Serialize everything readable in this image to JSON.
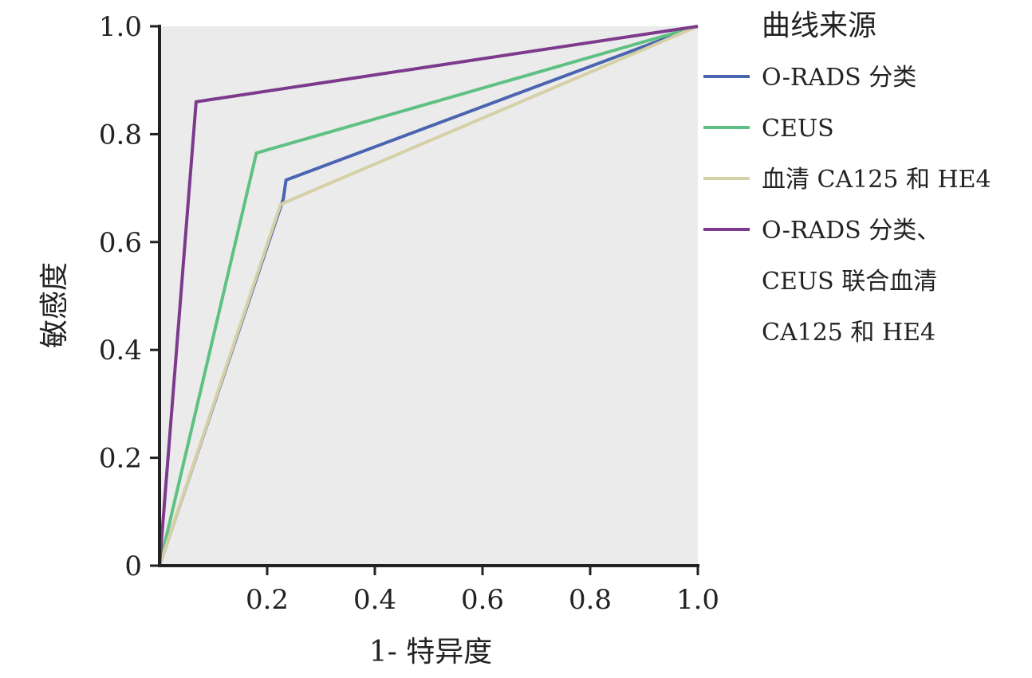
{
  "chart_data": {
    "type": "line",
    "xlabel": "1- 特异度",
    "ylabel": "敏感度",
    "xlim": [
      0,
      1
    ],
    "ylim": [
      0,
      1
    ],
    "grid": false,
    "background": "#ebebeb",
    "x_ticks": [
      "0.2",
      "0.4",
      "0.6",
      "0.8",
      "1.0"
    ],
    "x_tick_values": [
      0.2,
      0.4,
      0.6,
      0.8,
      1.0
    ],
    "y_ticks": [
      "0",
      "0.2",
      "0.4",
      "0.6",
      "0.8",
      "1.0"
    ],
    "y_tick_values": [
      0,
      0.2,
      0.4,
      0.6,
      0.8,
      1.0
    ],
    "legend": {
      "title": "曲线来源",
      "placement": "right"
    },
    "series": [
      {
        "name": "O-RADS 分类",
        "color": "#4a64b0",
        "x": [
          0,
          0.23,
          0.235,
          1.0
        ],
        "y": [
          0,
          0.68,
          0.715,
          1.0
        ]
      },
      {
        "name": "CEUS",
        "color": "#5ec182",
        "x": [
          0,
          0.18,
          1.0
        ],
        "y": [
          0,
          0.765,
          1.0
        ]
      },
      {
        "name": "血清 CA125 和 HE4",
        "color": "#d6d0a6",
        "x": [
          0,
          0.225,
          1.0
        ],
        "y": [
          0,
          0.67,
          1.0
        ]
      },
      {
        "name": "O-RADS 分类、CEUS 联合血清 CA125 和 HE4",
        "name_lines": [
          "O-RADS 分类、",
          "CEUS 联合血清",
          "CA125 和 HE4"
        ],
        "color": "#7d3a8c",
        "x": [
          0,
          0.068,
          1.0
        ],
        "y": [
          0,
          0.86,
          1.0
        ]
      }
    ]
  }
}
